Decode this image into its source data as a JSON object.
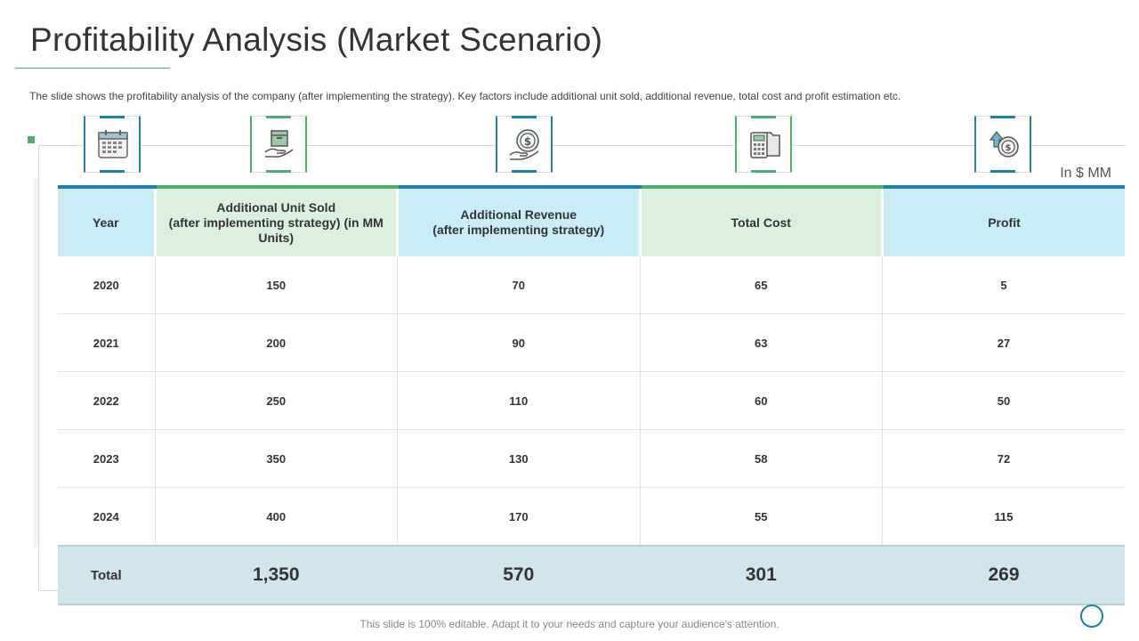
{
  "slide": {
    "title": "Profitability Analysis (Market Scenario)",
    "subtitle": "The slide shows the profitability analysis of the company (after implementing the strategy). Key factors include additional unit sold, additional revenue,  total cost and profit estimation etc.",
    "unit_note": "In $ MM",
    "footer": "This slide is 100% editable. Adapt it to your needs and capture your audience's attention."
  },
  "icons": [
    "calendar-icon",
    "box-in-hand-icon",
    "dollar-hand-icon",
    "calculator-folder-icon",
    "profit-coin-icon"
  ],
  "colors": {
    "blue_accent": "#1e7fa8",
    "green_accent": "#4caf72",
    "blue_header": "#c9ecf7",
    "green_header": "#dcf0df",
    "total_row": "#d0e6ec"
  },
  "table": {
    "headers": [
      "Year",
      "Additional Unit Sold\n(after implementing strategy) (in MM Units)",
      "Additional Revenue\n(after implementing strategy)",
      "Total Cost",
      "Profit"
    ],
    "rows": [
      [
        "2020",
        "150",
        "70",
        "65",
        "5"
      ],
      [
        "2021",
        "200",
        "90",
        "63",
        "27"
      ],
      [
        "2022",
        "250",
        "110",
        "60",
        "50"
      ],
      [
        "2023",
        "350",
        "130",
        "58",
        "72"
      ],
      [
        "2024",
        "400",
        "170",
        "55",
        "115"
      ]
    ],
    "total": [
      "Total",
      "1,350",
      "570",
      "301",
      "269"
    ]
  }
}
